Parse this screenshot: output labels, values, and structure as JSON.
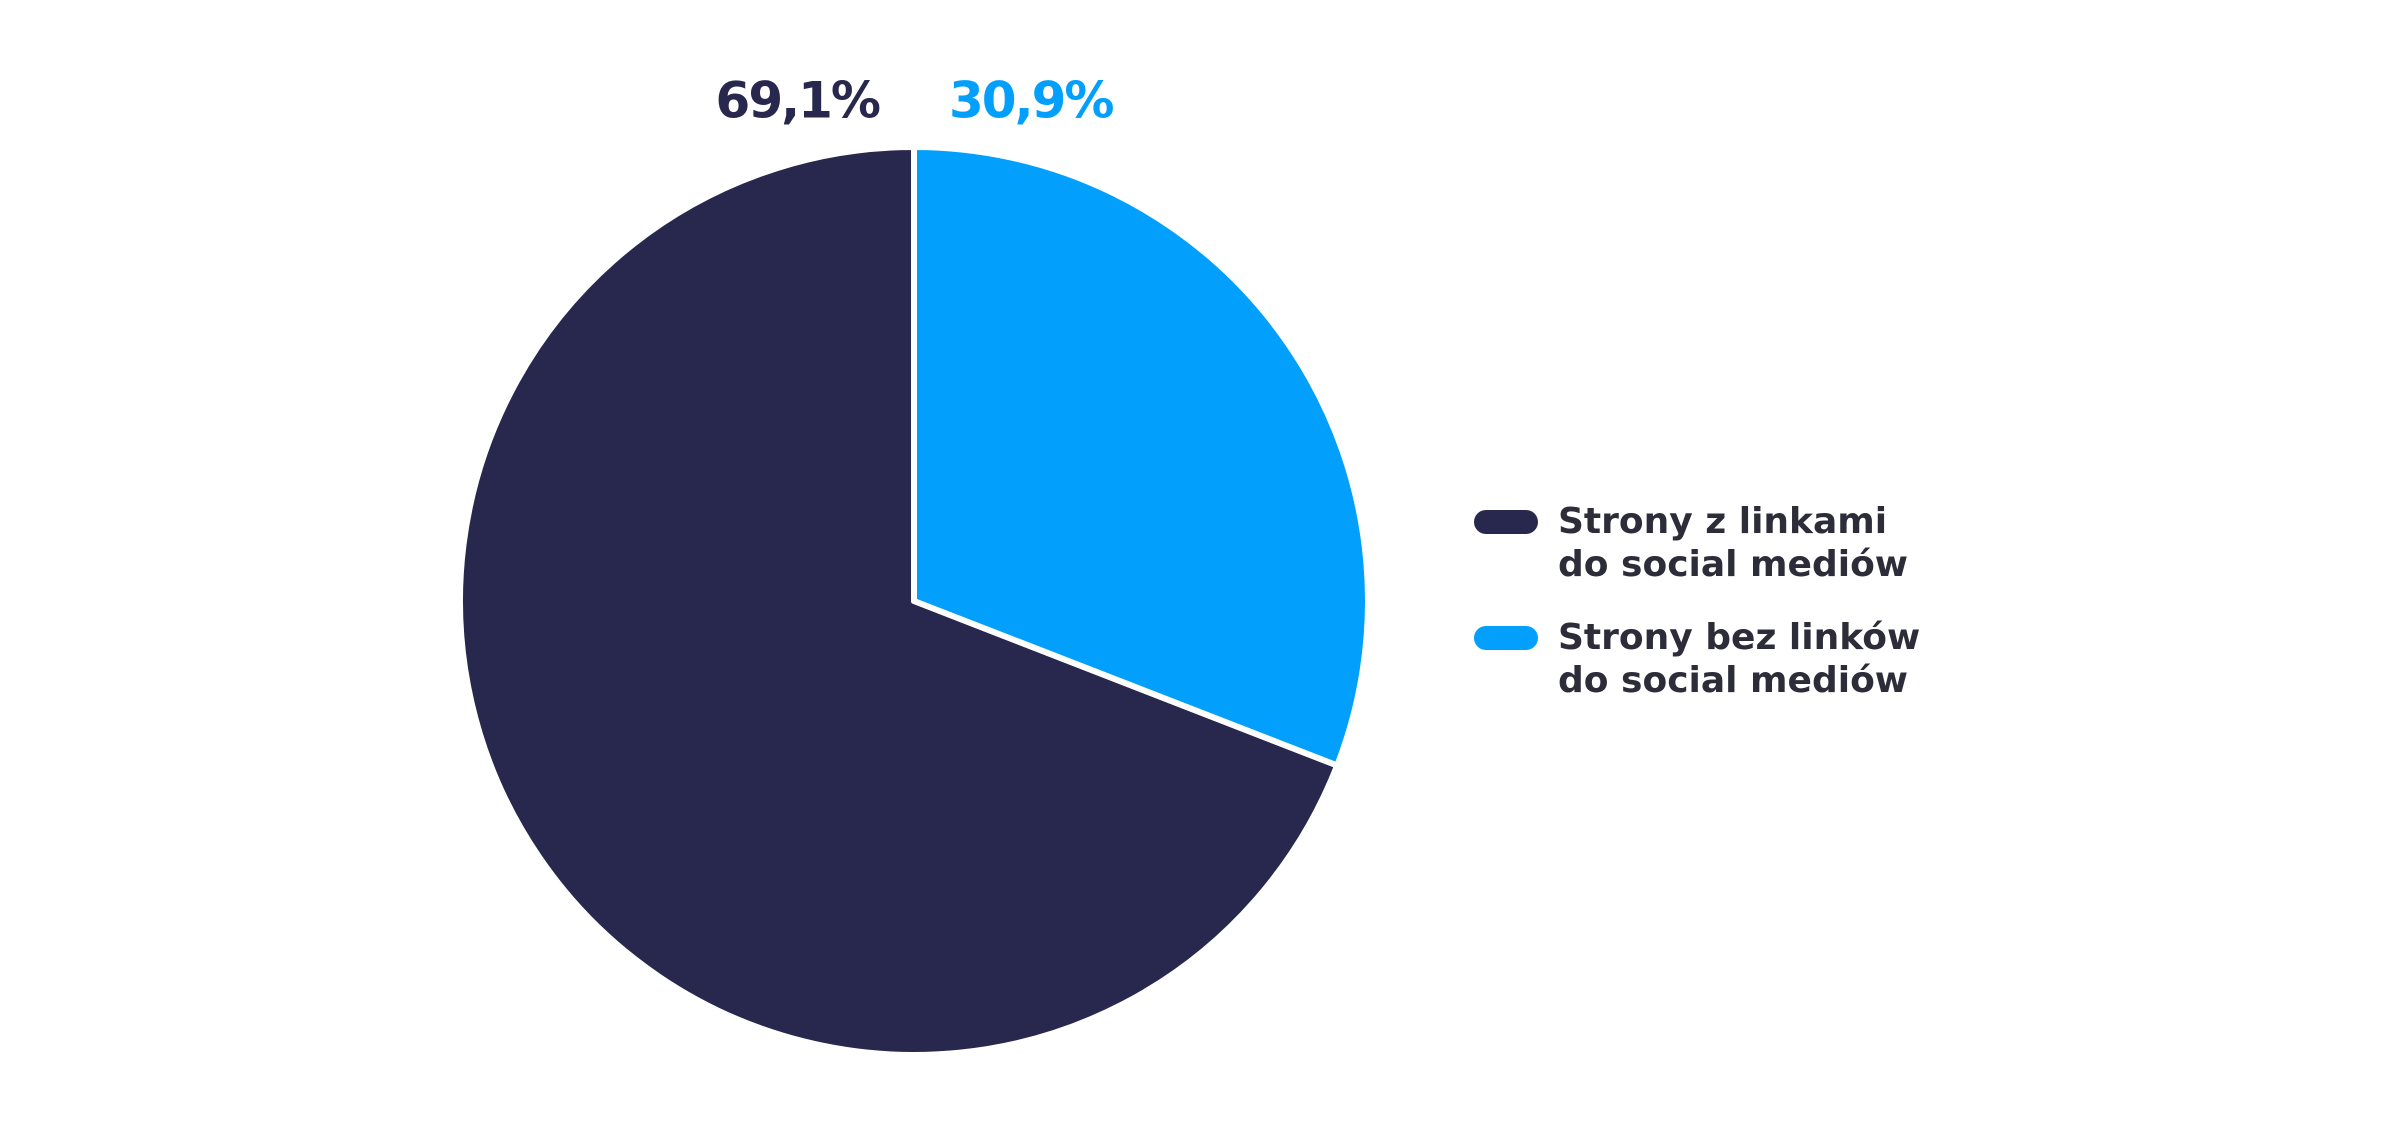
{
  "chart_data": {
    "type": "pie",
    "categories": [
      "Strony z linkami\ndo social mediów",
      "Strony bez linków\ndo social mediów"
    ],
    "values": [
      69.1,
      30.9
    ],
    "value_labels": [
      "69,1%",
      "30,9%"
    ],
    "colors": [
      "#28284f",
      "#02a0fc"
    ],
    "legend": "right"
  }
}
